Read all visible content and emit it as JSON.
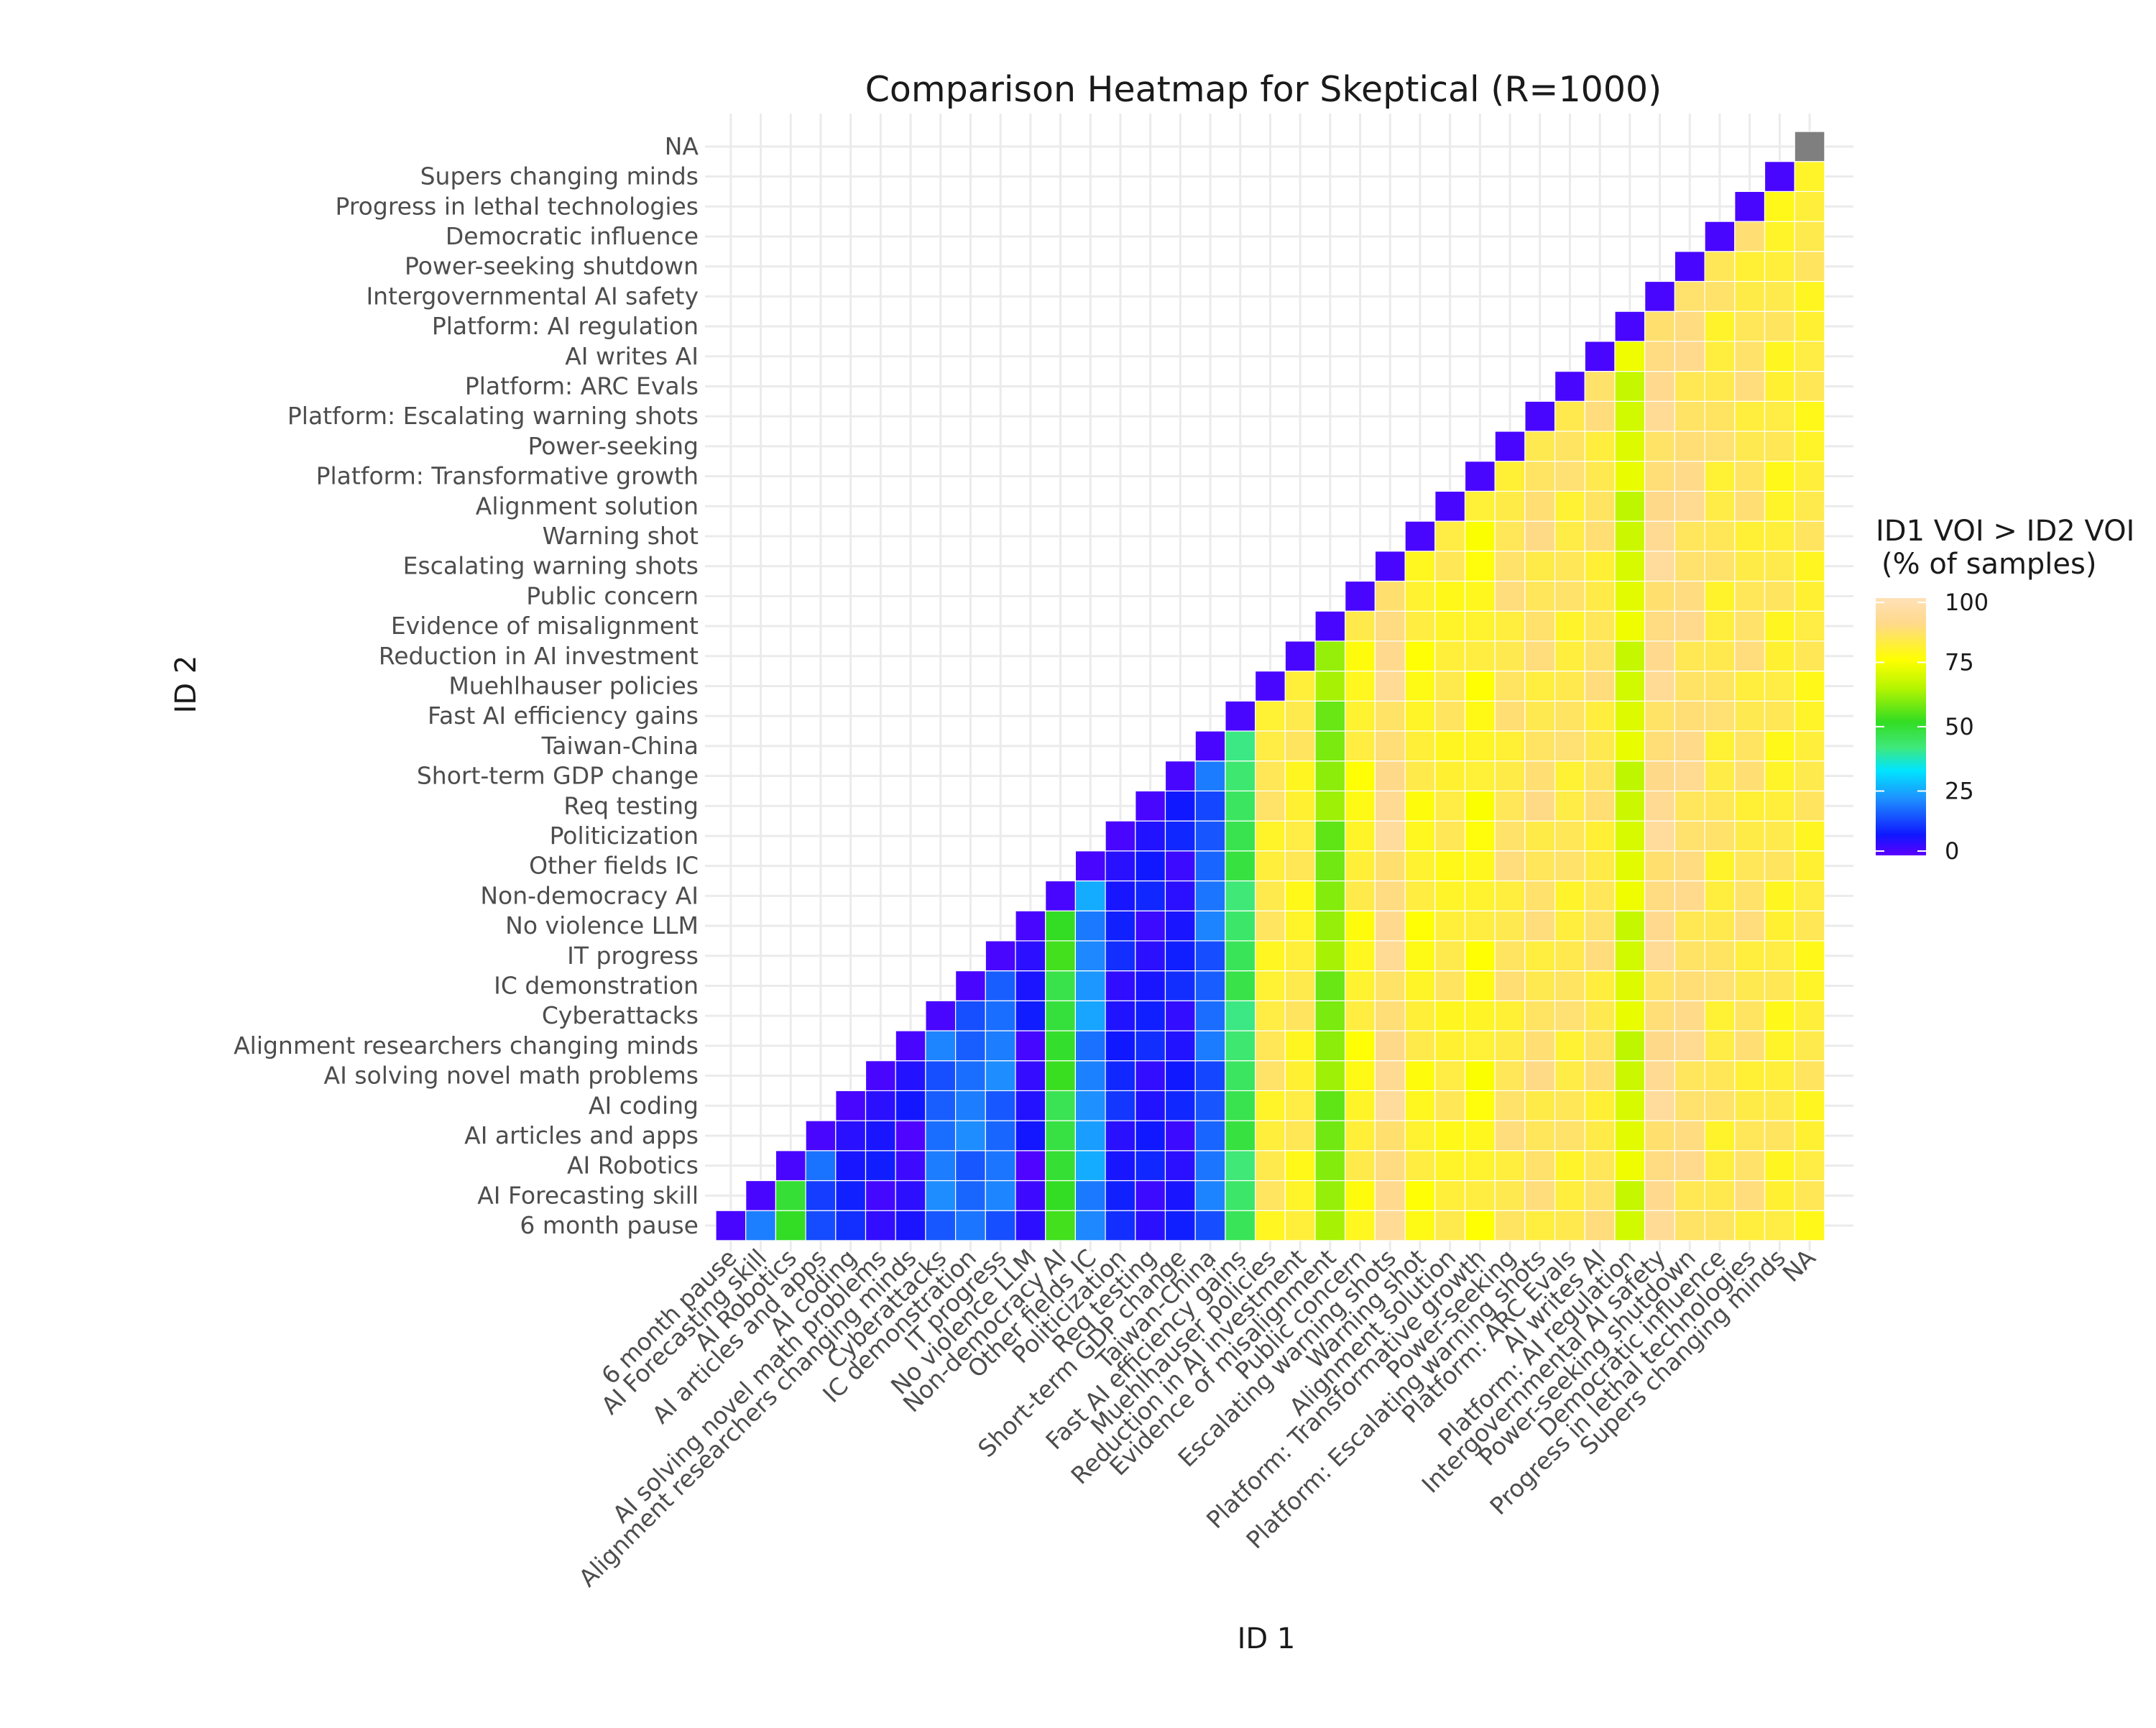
{
  "chart_data": {
    "type": "heatmap",
    "title": "Comparison Heatmap for Skeptical (R=1000)",
    "xlabel": "ID 1",
    "ylabel": "ID 2",
    "categories": [
      "6 month pause",
      "AI Forecasting skill",
      "AI Robotics",
      "AI articles and apps",
      "AI coding",
      "AI solving novel math problems",
      "Alignment researchers changing minds",
      "Cyberattacks",
      "IC demonstration",
      "IT progress",
      "No violence LLM",
      "Non-democracy AI",
      "Other fields IC",
      "Politicization",
      "Req testing",
      "Short-term GDP change",
      "Taiwan-China",
      "Fast AI efficiency gains",
      "Muehlhauser policies",
      "Reduction in AI investment",
      "Evidence of misalignment",
      "Public concern",
      "Escalating warning shots",
      "Warning shot",
      "Alignment solution",
      "Platform: Transformative growth",
      "Power-seeking",
      "Platform: Escalating warning shots",
      "Platform: ARC Evals",
      "AI writes AI",
      "Platform: AI regulation",
      "Intergovernmental AI safety",
      "Power-seeking shutdown",
      "Democratic influence",
      "Progress in lethal technologies",
      "Supers changing minds",
      "NA"
    ],
    "col_values": [
      2,
      20,
      48,
      15,
      8,
      6,
      5,
      18,
      18,
      18,
      5,
      50,
      22,
      8,
      7,
      7,
      17,
      45,
      83,
      82,
      60,
      80,
      90,
      80,
      82,
      79,
      85,
      86,
      84,
      85,
      70,
      90,
      88,
      84,
      85,
      82,
      82
    ],
    "diagonal_value": 2,
    "na_cell_color": "#7f7f7f",
    "legend": {
      "title_line1": "ID1 VOI > ID2 VOI",
      "title_line2": "(% of samples)",
      "ticks": [
        "100",
        "75",
        "50",
        "25",
        "0"
      ],
      "position": "right"
    },
    "color_scale": [
      "#5b00ff",
      "#0f18ff",
      "#1e90ff",
      "#00e5ff",
      "#3fe87a",
      "#33dd22",
      "#b5f500",
      "#ffff00",
      "#ffd98a",
      "#ffe1b8"
    ],
    "grid": true
  }
}
